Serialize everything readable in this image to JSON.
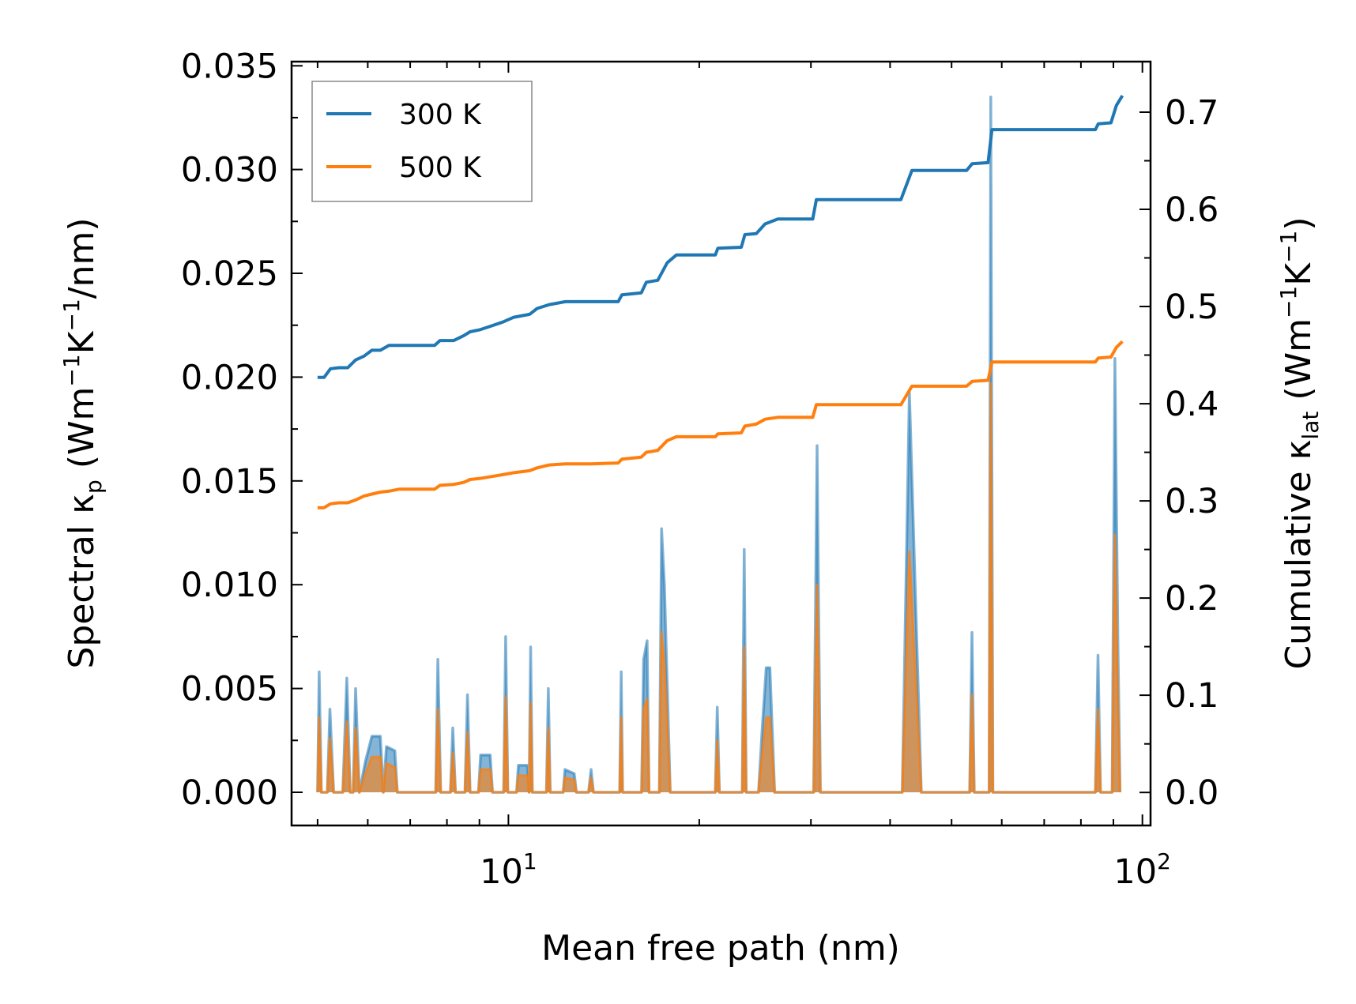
{
  "chart_data": {
    "type": "line",
    "xscale": "log",
    "xlabel": "Mean free path (nm)",
    "xlim": [
      4.55,
      103
    ],
    "x_ticks": [
      {
        "value": 10,
        "base": "10",
        "exponent": "1"
      },
      {
        "value": 100,
        "base": "10",
        "exponent": "2"
      }
    ],
    "left_axis": {
      "label_parts": {
        "pre": "Spectral κ",
        "sub": "p",
        "mid": " (Wm",
        "sup1": "−1",
        "k": "K",
        "sup2": "−1",
        "post": "/nm)"
      },
      "ylim": [
        -0.0016,
        0.0352
      ],
      "ticks": [
        "0.000",
        "0.005",
        "0.010",
        "0.015",
        "0.020",
        "0.025",
        "0.030",
        "0.035"
      ],
      "tick_values": [
        0,
        0.005,
        0.01,
        0.015,
        0.02,
        0.025,
        0.03,
        0.035
      ]
    },
    "right_axis": {
      "label_parts": {
        "pre": "Cumulative κ",
        "sub": "lat",
        "mid": " (Wm",
        "sup1": "−1",
        "k": "K",
        "sup2": "−1",
        "post": ")"
      },
      "ylim": [
        -0.034,
        0.752
      ],
      "ticks": [
        "0.0",
        "0.1",
        "0.2",
        "0.3",
        "0.4",
        "0.5",
        "0.6",
        "0.7"
      ],
      "tick_values": [
        0,
        0.1,
        0.2,
        0.3,
        0.4,
        0.5,
        0.6,
        0.7
      ]
    },
    "legend": {
      "position": "top-left",
      "entries": [
        "300 K",
        "500 K"
      ]
    },
    "colors": {
      "300 K": "#1f77b4",
      "500 K": "#ff7f0e"
    },
    "spectral_300K": [
      [
        5.0,
        0.0
      ],
      [
        5.03,
        0.0058
      ],
      [
        5.07,
        0.0
      ],
      [
        5.18,
        0.0
      ],
      [
        5.23,
        0.004
      ],
      [
        5.3,
        0.0
      ],
      [
        5.48,
        0.0
      ],
      [
        5.56,
        0.0055
      ],
      [
        5.63,
        0.0
      ],
      [
        5.69,
        0.0
      ],
      [
        5.74,
        0.005
      ],
      [
        5.82,
        0.0
      ],
      [
        5.95,
        0.0015
      ],
      [
        6.09,
        0.0027
      ],
      [
        6.28,
        0.0027
      ],
      [
        6.35,
        0.0
      ],
      [
        6.42,
        0.0022
      ],
      [
        6.62,
        0.002
      ],
      [
        6.68,
        0.0
      ],
      [
        7.68,
        0.0
      ],
      [
        7.74,
        0.0064
      ],
      [
        7.82,
        0.0
      ],
      [
        8.1,
        0.0
      ],
      [
        8.17,
        0.0031
      ],
      [
        8.25,
        0.0
      ],
      [
        8.54,
        0.0
      ],
      [
        8.62,
        0.0047
      ],
      [
        8.7,
        0.0
      ],
      [
        8.97,
        0.0
      ],
      [
        9.04,
        0.0018
      ],
      [
        9.36,
        0.0018
      ],
      [
        9.44,
        0.0
      ],
      [
        9.83,
        0.0
      ],
      [
        9.9,
        0.0075
      ],
      [
        9.98,
        0.0
      ],
      [
        10.3,
        0.0
      ],
      [
        10.37,
        0.0013
      ],
      [
        10.72,
        0.0013
      ],
      [
        10.78,
        0.0
      ],
      [
        10.84,
        0.007
      ],
      [
        10.91,
        0.0
      ],
      [
        11.48,
        0.0
      ],
      [
        11.56,
        0.005
      ],
      [
        11.64,
        0.0
      ],
      [
        12.2,
        0.0
      ],
      [
        12.28,
        0.0011
      ],
      [
        12.7,
        0.0009
      ],
      [
        12.8,
        0.0
      ],
      [
        13.38,
        0.0
      ],
      [
        13.5,
        0.0011
      ],
      [
        13.62,
        0.0
      ],
      [
        14.98,
        0.0
      ],
      [
        15.06,
        0.0058
      ],
      [
        15.14,
        0.0
      ],
      [
        16.22,
        0.0
      ],
      [
        16.34,
        0.0064
      ],
      [
        16.55,
        0.0073
      ],
      [
        16.67,
        0.0
      ],
      [
        17.3,
        0.0
      ],
      [
        17.44,
        0.0127
      ],
      [
        17.62,
        0.01
      ],
      [
        18.0,
        0.0
      ],
      [
        21.2,
        0.0
      ],
      [
        21.35,
        0.0041
      ],
      [
        21.52,
        0.0
      ],
      [
        23.38,
        0.0
      ],
      [
        23.55,
        0.0117
      ],
      [
        23.72,
        0.0
      ],
      [
        24.8,
        0.0
      ],
      [
        25.12,
        0.0029
      ],
      [
        25.5,
        0.006
      ],
      [
        25.85,
        0.006
      ],
      [
        26.3,
        0.0
      ],
      [
        30.3,
        0.0
      ],
      [
        30.68,
        0.0167
      ],
      [
        31.05,
        0.0
      ],
      [
        41.8,
        0.0
      ],
      [
        42.9,
        0.0193
      ],
      [
        44.8,
        0.0
      ],
      [
        53.4,
        0.0
      ],
      [
        53.85,
        0.0077
      ],
      [
        54.3,
        0.0
      ],
      [
        57.3,
        0.0
      ],
      [
        57.65,
        0.0335
      ],
      [
        58.1,
        0.0
      ],
      [
        59.3,
        0.0
      ],
      [
        84.3,
        0.0
      ],
      [
        85.1,
        0.0066
      ],
      [
        85.9,
        0.0
      ],
      [
        89.6,
        0.0
      ],
      [
        90.5,
        0.0209
      ],
      [
        91.5,
        0.0072
      ],
      [
        92.2,
        0.0
      ]
    ],
    "spectral_500K": [
      [
        5.0,
        0.0
      ],
      [
        5.03,
        0.0036
      ],
      [
        5.07,
        0.0
      ],
      [
        5.18,
        0.0
      ],
      [
        5.23,
        0.0026
      ],
      [
        5.3,
        0.0
      ],
      [
        5.48,
        0.0
      ],
      [
        5.56,
        0.0034
      ],
      [
        5.63,
        0.0
      ],
      [
        5.69,
        0.0
      ],
      [
        5.74,
        0.0031
      ],
      [
        5.82,
        0.0
      ],
      [
        5.95,
        0.0009
      ],
      [
        6.09,
        0.0017
      ],
      [
        6.28,
        0.0017
      ],
      [
        6.35,
        0.0
      ],
      [
        6.42,
        0.0014
      ],
      [
        6.62,
        0.0012
      ],
      [
        6.68,
        0.0
      ],
      [
        7.68,
        0.0
      ],
      [
        7.74,
        0.004
      ],
      [
        7.82,
        0.0
      ],
      [
        8.1,
        0.0
      ],
      [
        8.17,
        0.0019
      ],
      [
        8.25,
        0.0
      ],
      [
        8.54,
        0.0
      ],
      [
        8.62,
        0.0029
      ],
      [
        8.7,
        0.0
      ],
      [
        8.97,
        0.0
      ],
      [
        9.04,
        0.0011
      ],
      [
        9.36,
        0.0011
      ],
      [
        9.44,
        0.0
      ],
      [
        9.83,
        0.0
      ],
      [
        9.9,
        0.0046
      ],
      [
        9.98,
        0.0
      ],
      [
        10.3,
        0.0
      ],
      [
        10.37,
        0.0008
      ],
      [
        10.72,
        0.0008
      ],
      [
        10.78,
        0.0
      ],
      [
        10.84,
        0.0043
      ],
      [
        10.91,
        0.0
      ],
      [
        11.48,
        0.0
      ],
      [
        11.56,
        0.0031
      ],
      [
        11.64,
        0.0
      ],
      [
        12.2,
        0.0
      ],
      [
        12.28,
        0.0007
      ],
      [
        12.7,
        0.0006
      ],
      [
        12.8,
        0.0
      ],
      [
        13.38,
        0.0
      ],
      [
        13.5,
        0.0007
      ],
      [
        13.62,
        0.0
      ],
      [
        14.98,
        0.0
      ],
      [
        15.06,
        0.0036
      ],
      [
        15.14,
        0.0
      ],
      [
        16.22,
        0.0
      ],
      [
        16.34,
        0.004
      ],
      [
        16.55,
        0.0045
      ],
      [
        16.67,
        0.0
      ],
      [
        17.3,
        0.0
      ],
      [
        17.44,
        0.0077
      ],
      [
        17.62,
        0.0062
      ],
      [
        18.0,
        0.0
      ],
      [
        21.2,
        0.0
      ],
      [
        21.35,
        0.0025
      ],
      [
        21.52,
        0.0
      ],
      [
        23.38,
        0.0
      ],
      [
        23.55,
        0.007
      ],
      [
        23.72,
        0.0
      ],
      [
        24.8,
        0.0
      ],
      [
        25.12,
        0.0018
      ],
      [
        25.5,
        0.0036
      ],
      [
        25.85,
        0.0036
      ],
      [
        26.3,
        0.0
      ],
      [
        30.3,
        0.0
      ],
      [
        30.68,
        0.01
      ],
      [
        31.05,
        0.0
      ],
      [
        41.8,
        0.0
      ],
      [
        42.9,
        0.0116
      ],
      [
        44.8,
        0.0
      ],
      [
        53.4,
        0.0
      ],
      [
        53.85,
        0.0047
      ],
      [
        54.3,
        0.0
      ],
      [
        57.3,
        0.0
      ],
      [
        57.65,
        0.0197
      ],
      [
        58.1,
        0.0
      ],
      [
        59.3,
        0.0
      ],
      [
        84.3,
        0.0
      ],
      [
        85.1,
        0.004
      ],
      [
        85.9,
        0.0
      ],
      [
        89.6,
        0.0
      ],
      [
        90.5,
        0.0124
      ],
      [
        91.5,
        0.0043
      ],
      [
        92.2,
        0.0
      ]
    ],
    "cumulative_300K": [
      [
        5.0,
        0.427
      ],
      [
        5.12,
        0.427
      ],
      [
        5.24,
        0.436
      ],
      [
        5.4,
        0.437
      ],
      [
        5.58,
        0.437
      ],
      [
        5.74,
        0.445
      ],
      [
        5.92,
        0.449
      ],
      [
        6.09,
        0.455
      ],
      [
        6.28,
        0.455
      ],
      [
        6.48,
        0.46
      ],
      [
        6.72,
        0.46
      ],
      [
        7.0,
        0.46
      ],
      [
        7.65,
        0.46
      ],
      [
        7.8,
        0.465
      ],
      [
        8.2,
        0.465
      ],
      [
        8.5,
        0.47
      ],
      [
        8.7,
        0.474
      ],
      [
        9.0,
        0.476
      ],
      [
        9.4,
        0.48
      ],
      [
        9.8,
        0.484
      ],
      [
        10.2,
        0.489
      ],
      [
        10.8,
        0.492
      ],
      [
        11.1,
        0.498
      ],
      [
        11.6,
        0.502
      ],
      [
        12.3,
        0.505
      ],
      [
        13.5,
        0.505
      ],
      [
        14.9,
        0.505
      ],
      [
        15.1,
        0.512
      ],
      [
        16.2,
        0.514
      ],
      [
        16.5,
        0.525
      ],
      [
        17.2,
        0.527
      ],
      [
        17.8,
        0.545
      ],
      [
        18.4,
        0.553
      ],
      [
        20.0,
        0.553
      ],
      [
        21.2,
        0.553
      ],
      [
        21.4,
        0.56
      ],
      [
        23.3,
        0.561
      ],
      [
        23.6,
        0.574
      ],
      [
        24.6,
        0.575
      ],
      [
        25.4,
        0.585
      ],
      [
        26.6,
        0.59
      ],
      [
        30.2,
        0.59
      ],
      [
        30.6,
        0.61
      ],
      [
        37.0,
        0.61
      ],
      [
        41.6,
        0.61
      ],
      [
        43.3,
        0.64
      ],
      [
        52.8,
        0.64
      ],
      [
        53.9,
        0.647
      ],
      [
        57.1,
        0.648
      ],
      [
        57.9,
        0.682
      ],
      [
        62.0,
        0.682
      ],
      [
        80.0,
        0.682
      ],
      [
        84.3,
        0.682
      ],
      [
        85.2,
        0.688
      ],
      [
        89.2,
        0.689
      ],
      [
        91.0,
        0.707
      ],
      [
        93.0,
        0.717
      ]
    ],
    "cumulative_500K": [
      [
        5.0,
        0.293
      ],
      [
        5.12,
        0.293
      ],
      [
        5.24,
        0.297
      ],
      [
        5.4,
        0.298
      ],
      [
        5.58,
        0.298
      ],
      [
        5.74,
        0.301
      ],
      [
        5.92,
        0.305
      ],
      [
        6.09,
        0.307
      ],
      [
        6.28,
        0.309
      ],
      [
        6.48,
        0.31
      ],
      [
        6.72,
        0.312
      ],
      [
        7.0,
        0.312
      ],
      [
        7.65,
        0.312
      ],
      [
        7.8,
        0.316
      ],
      [
        8.2,
        0.317
      ],
      [
        8.5,
        0.319
      ],
      [
        8.7,
        0.322
      ],
      [
        9.0,
        0.323
      ],
      [
        9.4,
        0.325
      ],
      [
        9.8,
        0.327
      ],
      [
        10.2,
        0.329
      ],
      [
        10.8,
        0.331
      ],
      [
        11.1,
        0.334
      ],
      [
        11.6,
        0.337
      ],
      [
        12.3,
        0.338
      ],
      [
        13.5,
        0.338
      ],
      [
        14.9,
        0.339
      ],
      [
        15.1,
        0.343
      ],
      [
        16.2,
        0.345
      ],
      [
        16.5,
        0.35
      ],
      [
        17.2,
        0.352
      ],
      [
        17.8,
        0.362
      ],
      [
        18.4,
        0.366
      ],
      [
        20.0,
        0.366
      ],
      [
        21.2,
        0.366
      ],
      [
        21.4,
        0.369
      ],
      [
        23.3,
        0.37
      ],
      [
        23.6,
        0.377
      ],
      [
        24.6,
        0.379
      ],
      [
        25.4,
        0.384
      ],
      [
        26.6,
        0.386
      ],
      [
        30.2,
        0.386
      ],
      [
        30.6,
        0.399
      ],
      [
        37.0,
        0.399
      ],
      [
        41.6,
        0.399
      ],
      [
        43.3,
        0.418
      ],
      [
        52.8,
        0.418
      ],
      [
        53.9,
        0.423
      ],
      [
        57.1,
        0.424
      ],
      [
        57.9,
        0.443
      ],
      [
        62.0,
        0.443
      ],
      [
        80.0,
        0.443
      ],
      [
        84.3,
        0.443
      ],
      [
        85.2,
        0.447
      ],
      [
        89.2,
        0.448
      ],
      [
        91.0,
        0.458
      ],
      [
        93.0,
        0.464
      ]
    ]
  }
}
